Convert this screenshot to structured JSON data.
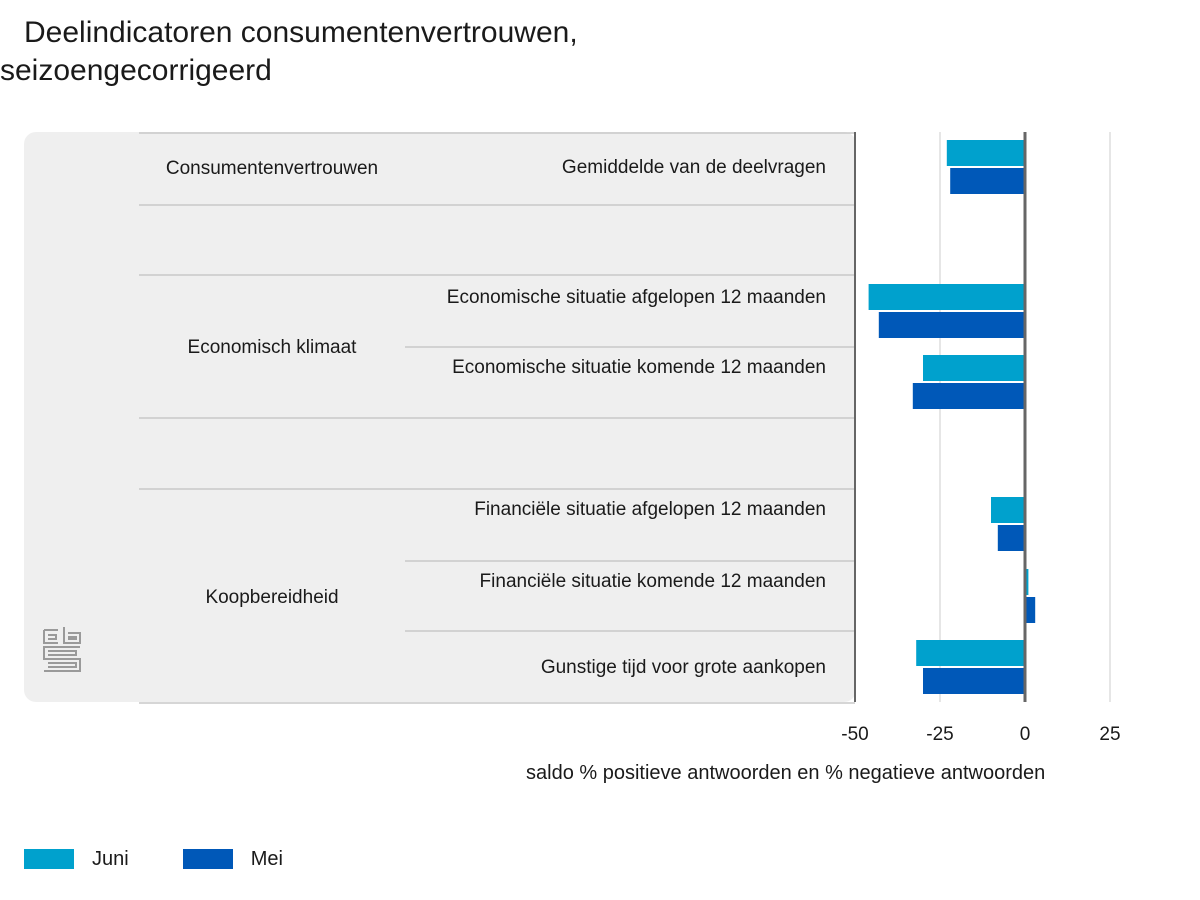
{
  "title_line1": "Deelindicatoren consumentenvertrouwen,",
  "title_line2": "seizoengecorrigeerd",
  "colors": {
    "juni": "#00a1cd",
    "mei": "#0058b8",
    "panel": "#efefef",
    "axis": "#666666",
    "grid": "#cccccc"
  },
  "chart_data": {
    "type": "bar",
    "orientation": "horizontal",
    "xlabel": "saldo % positieve antwoorden en % negatieve antwoorden",
    "xlim": [
      -50,
      25
    ],
    "xticks": [
      "-50",
      "-25",
      "0",
      "25"
    ],
    "groups": [
      {
        "label": "Consumentenvertrouwen",
        "items": [
          "Gemiddelde van de deelvragen"
        ]
      },
      {
        "label": "Economisch klimaat",
        "items": [
          "Economische situatie afgelopen 12 maanden",
          "Economische situatie komende 12 maanden"
        ]
      },
      {
        "label": "Koopbereidheid",
        "items": [
          "Financiële situatie afgelopen 12 maanden",
          "Financiële situatie komende 12 maanden",
          "Gunstige tijd voor grote aankopen"
        ]
      }
    ],
    "categories": [
      "Gemiddelde van de deelvragen",
      "Economische situatie afgelopen 12 maanden",
      "Economische situatie komende 12 maanden",
      "Financiële situatie afgelopen 12 maanden",
      "Financiële situatie komende 12 maanden",
      "Gunstige tijd voor grote aankopen"
    ],
    "series": [
      {
        "name": "Juni",
        "values": [
          -23,
          -46,
          -30,
          -10,
          1,
          -32
        ]
      },
      {
        "name": "Mei",
        "values": [
          -22,
          -43,
          -33,
          -8,
          3,
          -30
        ]
      }
    ],
    "legend": [
      "Juni",
      "Mei"
    ],
    "legend_position": "bottom-left"
  }
}
